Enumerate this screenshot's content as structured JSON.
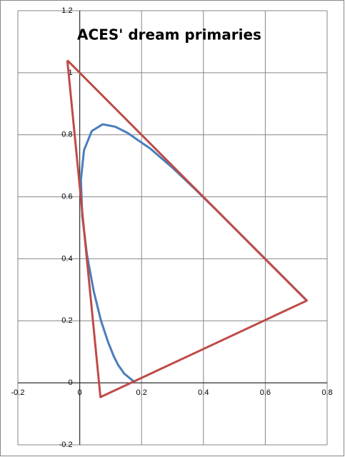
{
  "chart_data": {
    "type": "scatter",
    "title": "ACES' dream primaries",
    "xlim": [
      -0.2,
      0.8
    ],
    "xticks": [
      -0.2,
      0,
      0.2,
      0.4,
      0.6,
      0.8
    ],
    "ylim": [
      -0.2,
      1.2
    ],
    "yticks": [
      -0.2,
      0,
      0.2,
      0.4,
      0.6,
      0.8,
      1,
      1.2
    ],
    "grid": true,
    "series": [
      {
        "color": "#4a7ebb",
        "x": [
          0.1741,
          0.144,
          0.1241,
          0.1096,
          0.0913,
          0.0687,
          0.0454,
          0.0235,
          0.0082,
          0.0039,
          0.0139,
          0.0389,
          0.0743,
          0.1142,
          0.1547,
          0.2296,
          0.3016,
          0.3731,
          0.4441,
          0.5125,
          0.5752,
          0.627,
          0.6915,
          0.719,
          0.7347
        ],
        "values": [
          0.005,
          0.0297,
          0.0578,
          0.0868,
          0.1327,
          0.2007,
          0.295,
          0.4127,
          0.5384,
          0.6548,
          0.7502,
          0.812,
          0.8338,
          0.8262,
          0.8059,
          0.7543,
          0.6923,
          0.6245,
          0.5547,
          0.4866,
          0.4242,
          0.3725,
          0.3083,
          0.2809,
          0.2653
        ]
      },
      {
        "color": "#be4b48",
        "x": [
          -0.04,
          0.734,
          0.067,
          -0.04
        ],
        "values": [
          1.04,
          0.265,
          -0.046,
          1.04
        ]
      }
    ]
  }
}
